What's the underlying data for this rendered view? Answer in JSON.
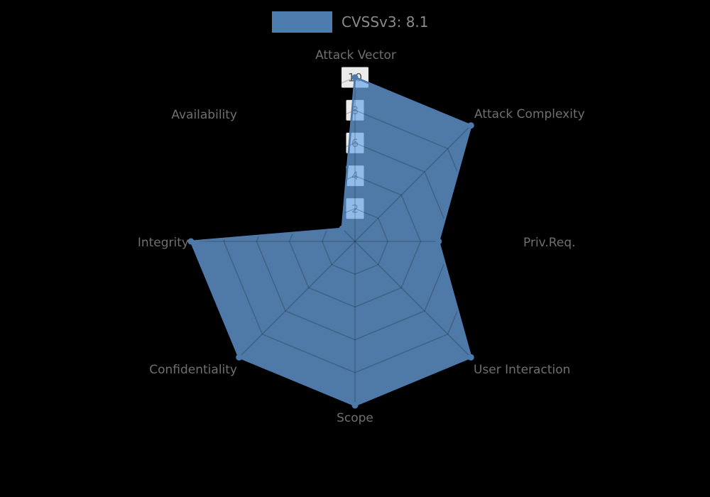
{
  "legend": {
    "label": "CVSSv3: 8.1",
    "swatch_color": "#4d7cae"
  },
  "chart_data": {
    "type": "radar",
    "title": "CVSSv3: 8.1",
    "score": "8.1",
    "categories": [
      "Attack Vector",
      "Attack Complexity",
      "Priv.Req.",
      "User Interaction",
      "Scope",
      "Confidentiality",
      "Integrity",
      "Availability"
    ],
    "values": [
      10,
      10,
      5.1,
      10,
      10,
      10,
      10,
      1.1
    ],
    "r_ticks": [
      10,
      8,
      6,
      4,
      2
    ],
    "rlim": [
      0,
      10
    ],
    "grid": true,
    "legend_position": "top-center",
    "fill_color": "#6ea7e6",
    "fill_opacity": 0.72,
    "line_color": "#4d7aab",
    "grid_color": "rgba(0,0,0,0.18)",
    "tick_box_color": "rgba(255,255,255,0.92)",
    "tick_label_color": "#4f4f4f",
    "axis_label_color": "#6f6f6f",
    "background": "#000000"
  }
}
